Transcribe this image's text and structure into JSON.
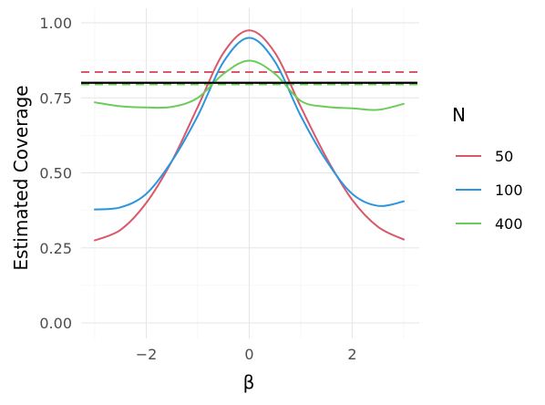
{
  "chart_data": {
    "type": "line",
    "xlabel": "β",
    "ylabel": "Estimated Coverage",
    "xlim": [
      -3,
      3
    ],
    "ylim": [
      0,
      1
    ],
    "x_ticks": [
      -2,
      0,
      2
    ],
    "y_ticks": [
      0.0,
      0.25,
      0.5,
      0.75,
      1.0
    ],
    "x_tick_labels": [
      "−2",
      "0",
      "2"
    ],
    "y_tick_labels": [
      "0.00",
      "0.25",
      "0.50",
      "0.75",
      "1.00"
    ],
    "grid": true,
    "legend": {
      "title": "N",
      "placement": "right"
    },
    "series": [
      {
        "name": "50",
        "color": "#d9596b",
        "x": [
          -3,
          -2.5,
          -2,
          -1.5,
          -1,
          -0.5,
          0,
          0.5,
          1,
          1.5,
          2,
          2.5,
          3
        ],
        "y": [
          0.275,
          0.31,
          0.4,
          0.54,
          0.72,
          0.9,
          0.975,
          0.9,
          0.72,
          0.55,
          0.41,
          0.32,
          0.278
        ]
      },
      {
        "name": "100",
        "color": "#2b96e0",
        "x": [
          -3,
          -2.5,
          -2,
          -1.5,
          -1,
          -0.5,
          0,
          0.5,
          1,
          1.5,
          2,
          2.5,
          3
        ],
        "y": [
          0.378,
          0.385,
          0.43,
          0.54,
          0.69,
          0.87,
          0.95,
          0.87,
          0.69,
          0.54,
          0.43,
          0.39,
          0.405
        ]
      },
      {
        "name": "400",
        "color": "#6ccc5a",
        "x": [
          -3,
          -2.5,
          -2,
          -1.5,
          -1,
          -0.5,
          0,
          0.5,
          1,
          1.5,
          2,
          2.5,
          3
        ],
        "y": [
          0.735,
          0.722,
          0.718,
          0.72,
          0.75,
          0.83,
          0.874,
          0.83,
          0.74,
          0.72,
          0.715,
          0.71,
          0.73
        ]
      }
    ],
    "reference_lines": [
      {
        "y": 0.8,
        "color": "#000000",
        "style": "solid"
      },
      {
        "y": 0.836,
        "color": "#d9596b",
        "style": "dashed"
      },
      {
        "y": 0.797,
        "color": "#2b96e0",
        "style": "dashed"
      },
      {
        "y": 0.795,
        "color": "#6ccc5a",
        "style": "dashed"
      }
    ]
  }
}
